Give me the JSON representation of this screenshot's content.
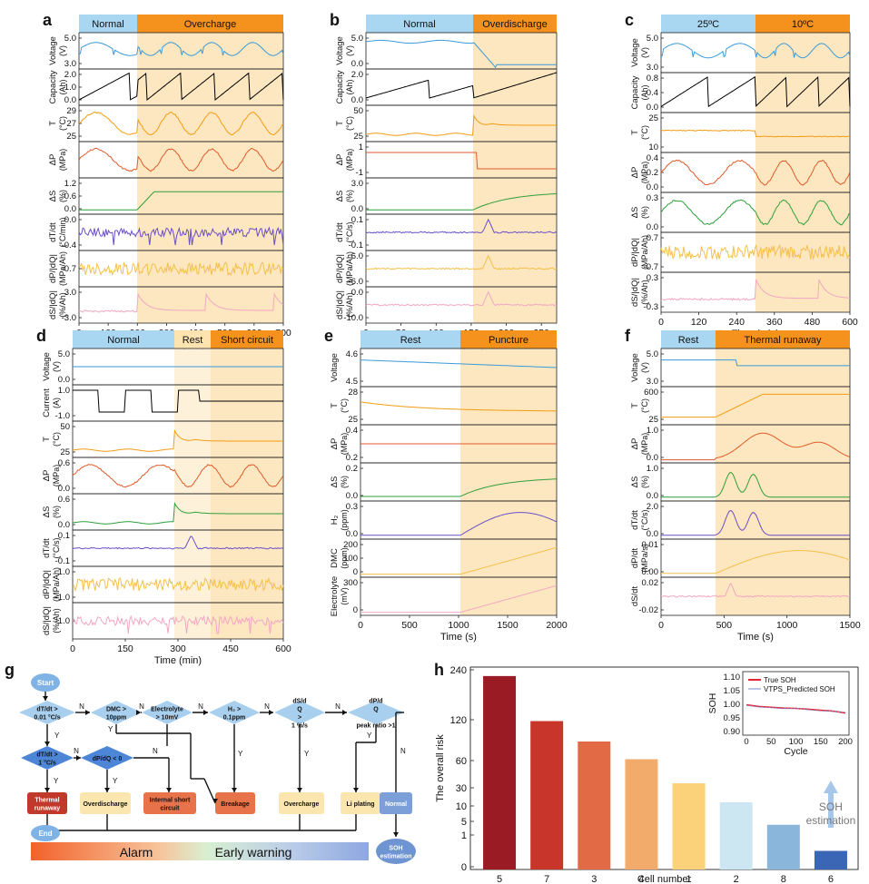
{
  "panels": {
    "a": {
      "letter": "a",
      "phases": [
        {
          "label": "Normal",
          "color": "#a9d6f0"
        },
        {
          "label": "Overcharge",
          "color": "#f5921e"
        }
      ],
      "rows": [
        {
          "label": "Voltage",
          "unit": "(V)",
          "ticks": [
            "5.0",
            "3.0"
          ],
          "color": "#3b9ad6"
        },
        {
          "label": "Capacity",
          "unit": "(Ah)",
          "ticks": [
            "2.0",
            "1.0",
            "0.0"
          ],
          "color": "#000000"
        },
        {
          "label": "T",
          "unit": "(°C)",
          "ticks": [
            "29",
            "27",
            "25"
          ],
          "color": "#f39c12"
        },
        {
          "label": "ΔP",
          "unit": "(MPa)",
          "ticks": [],
          "color": "#e05a2b"
        },
        {
          "label": "ΔS",
          "unit": "(%)",
          "ticks": [
            "1.2",
            "0.6",
            "0.0"
          ],
          "color": "#2e9e3a"
        },
        {
          "label": "dT/dt",
          "unit": "(°C/min)",
          "ticks": [
            "0.0",
            "-0.4"
          ],
          "color": "#6a4fc7"
        },
        {
          "label": "dP/|dQ|",
          "unit": "(MPa/Ah)",
          "ticks": [
            "-0.7"
          ],
          "color": "#f4c04a"
        },
        {
          "label": "dS/|dQ|",
          "unit": "(%/Ah)",
          "ticks": [
            "3.0",
            "-3.0"
          ],
          "color": "#f2a7c3"
        }
      ],
      "xticks": [
        "0",
        "100",
        "200",
        "300",
        "400",
        "500",
        "600",
        "700"
      ],
      "xlabel": "Time (min)"
    },
    "b": {
      "letter": "b",
      "phases": [
        {
          "label": "Normal",
          "color": "#a9d6f0"
        },
        {
          "label": "Overdischarge",
          "color": "#f5921e"
        }
      ],
      "rows": [
        {
          "label": "Voltage",
          "unit": "(V)",
          "ticks": [
            "5.0",
            "0.0"
          ],
          "color": "#3b9ad6"
        },
        {
          "label": "Capacity",
          "unit": "(Ah)",
          "ticks": [
            "2.0",
            "0.0"
          ],
          "color": "#000000"
        },
        {
          "label": "T",
          "unit": "(°C)",
          "ticks": [
            "50",
            "25"
          ],
          "color": "#f39c12"
        },
        {
          "label": "ΔP",
          "unit": "(MPa)",
          "ticks": [
            "1",
            "-1"
          ],
          "color": "#e05a2b"
        },
        {
          "label": "ΔS",
          "unit": "(%)",
          "ticks": [
            "3.0",
            "0.0"
          ],
          "color": "#2e9e3a"
        },
        {
          "label": "dT/dt",
          "unit": "(°C/s)",
          "ticks": [
            "0.1",
            "-0.1"
          ],
          "color": "#6a4fc7"
        },
        {
          "label": "dP/|dQ|",
          "unit": "(MPa/Ah)",
          "ticks": [
            "6.0",
            "-6.0"
          ],
          "color": "#f4c04a"
        },
        {
          "label": "dS/|dQ|",
          "unit": "(%/Ah)",
          "ticks": [
            "0.0",
            "-10.0"
          ],
          "color": "#f2a7c3"
        }
      ],
      "xticks": [
        "0",
        "50",
        "100",
        "150",
        "200",
        "250"
      ],
      "xlabel": "Time (min)"
    },
    "c": {
      "letter": "c",
      "phases": [
        {
          "label": "25ºC",
          "color": "#a9d6f0"
        },
        {
          "label": "10ºC",
          "color": "#f5921e"
        }
      ],
      "rows": [
        {
          "label": "Voltage",
          "unit": "(V)",
          "ticks": [
            "5.0",
            "3.0"
          ],
          "color": "#3b9ad6"
        },
        {
          "label": "Capacity",
          "unit": "(Ah)",
          "ticks": [
            "0.8",
            "0.4",
            "0.0"
          ],
          "color": "#000000"
        },
        {
          "label": "T",
          "unit": "(°C)",
          "ticks": [
            "25",
            "10"
          ],
          "color": "#f39c12"
        },
        {
          "label": "ΔP",
          "unit": "(MPa)",
          "ticks": [
            "0.4",
            "0.2",
            "0.0"
          ],
          "color": "#e05a2b"
        },
        {
          "label": "ΔS",
          "unit": "(%)",
          "ticks": [
            "0.3",
            "0.0"
          ],
          "color": "#2e9e3a"
        },
        {
          "label": "dP/|dQ|",
          "unit": "(MPa/Ah)",
          "ticks": [
            "0.7",
            "-0.7"
          ],
          "color": "#f4c04a"
        },
        {
          "label": "dS/|dQ|",
          "unit": "(%/Ah)",
          "ticks": [
            "0.3",
            "-0.3"
          ],
          "color": "#f2a7c3"
        }
      ],
      "xticks": [
        "0",
        "120",
        "240",
        "360",
        "480",
        "600"
      ],
      "xlabel": "Time (min)"
    },
    "d": {
      "letter": "d",
      "phases": [
        {
          "label": "Normal",
          "color": "#a9d6f0"
        },
        {
          "label": "Rest",
          "color": "#fde3b0"
        },
        {
          "label": "Short circuit",
          "color": "#f5921e"
        }
      ],
      "rows": [
        {
          "label": "Voltage",
          "unit": "(V)",
          "ticks": [
            "5.0",
            "0.0"
          ],
          "color": "#3b9ad6"
        },
        {
          "label": "Current",
          "unit": "(A)",
          "ticks": [
            "1.0",
            "-1.0"
          ],
          "color": "#000000"
        },
        {
          "label": "T",
          "unit": "(°C)",
          "ticks": [
            "50",
            "25"
          ],
          "color": "#f39c12"
        },
        {
          "label": "ΔP",
          "unit": "(MPa)",
          "ticks": [
            "0.6",
            "0.0"
          ],
          "color": "#e05a2b"
        },
        {
          "label": "ΔS",
          "unit": "(%)",
          "ticks": [
            "0.6",
            "0.0"
          ],
          "color": "#2e9e3a"
        },
        {
          "label": "dT/dt",
          "unit": "(°C/s)",
          "ticks": [
            "0.1",
            "-0.1"
          ],
          "color": "#6a4fc7"
        },
        {
          "label": "dP/|dQ|",
          "unit": "(MPa/Ah)",
          "ticks": [
            "1.0",
            "-1.0"
          ],
          "color": "#f4c04a"
        },
        {
          "label": "dS/|dQ|",
          "unit": "(%/Ah)",
          "ticks": [
            "-1.0"
          ],
          "color": "#f2a7c3"
        }
      ],
      "xticks": [
        "0",
        "150",
        "300",
        "450",
        "600"
      ],
      "xlabel": "Time (min)"
    },
    "e": {
      "letter": "e",
      "phases": [
        {
          "label": "Rest",
          "color": "#a9d6f0"
        },
        {
          "label": "Puncture",
          "color": "#f5921e"
        }
      ],
      "rows": [
        {
          "label": "Voltage",
          "unit": "",
          "ticks": [
            "4.6",
            "4.5"
          ],
          "color": "#3b9ad6"
        },
        {
          "label": "T",
          "unit": "(°C)",
          "ticks": [
            "28",
            "25"
          ],
          "color": "#f39c12"
        },
        {
          "label": "ΔP",
          "unit": "(MPa)",
          "ticks": [
            "0.4",
            "0.2"
          ],
          "color": "#e05a2b"
        },
        {
          "label": "ΔS",
          "unit": "(%)",
          "ticks": [
            "0.2",
            "0.0"
          ],
          "color": "#2e9e3a"
        },
        {
          "label": "H₂",
          "unit": "(ppm)",
          "ticks": [
            "0.3",
            "0.0"
          ],
          "color": "#6a4fc7"
        },
        {
          "label": "DMC",
          "unit": "(ppm)",
          "ticks": [
            "200",
            "100",
            "0"
          ],
          "color": "#f4c04a"
        },
        {
          "label": "Electrolyte",
          "unit": "(mV)",
          "ticks": [
            "300",
            "0"
          ],
          "color": "#f2a7c3"
        }
      ],
      "xticks": [
        "0",
        "500",
        "1000",
        "1500",
        "2000"
      ],
      "xlabel": "Time (s)"
    },
    "f": {
      "letter": "f",
      "phases": [
        {
          "label": "Rest",
          "color": "#a9d6f0"
        },
        {
          "label": "Thermal runaway",
          "color": "#f5921e"
        }
      ],
      "rows": [
        {
          "label": "Voltage",
          "unit": "(V)",
          "ticks": [
            "5.0",
            "3.0"
          ],
          "color": "#3b9ad6"
        },
        {
          "label": "T",
          "unit": "(°C)",
          "ticks": [
            "600",
            "25"
          ],
          "color": "#f39c12"
        },
        {
          "label": "ΔP",
          "unit": "(MPa)",
          "ticks": [
            "1.0",
            "0.0"
          ],
          "color": "#e05a2b"
        },
        {
          "label": "ΔS",
          "unit": "(%)",
          "ticks": [
            "1.0",
            "0.0"
          ],
          "color": "#2e9e3a"
        },
        {
          "label": "dT/dt",
          "unit": "(°C/s)",
          "ticks": [
            "2.0",
            "0.0"
          ],
          "color": "#6a4fc7"
        },
        {
          "label": "dP/dt",
          "unit": "(MPa/s)",
          "ticks": [
            "0.01",
            "0.00"
          ],
          "color": "#f4c04a"
        },
        {
          "label": "dS/dt",
          "unit": "",
          "ticks": [
            "0.02",
            "-0.02"
          ],
          "color": "#f2a7c3"
        }
      ],
      "xticks": [
        "0",
        "500",
        "1000",
        "1500"
      ],
      "xlabel": "Time (s)"
    }
  },
  "flowchart": {
    "letter": "g",
    "start": "Start",
    "end": "End",
    "decisions": [
      {
        "id": "dT",
        "text": "dT/dt >|0.01 °C/s"
      },
      {
        "id": "DMC",
        "text": "DMC >|10ppm"
      },
      {
        "id": "Ele",
        "text": "Electrolyte|> 10mV"
      },
      {
        "id": "H2",
        "text": "H₂ >|0.1ppm"
      },
      {
        "id": "dS",
        "text": "dS/d|Q| >|1 %/s"
      },
      {
        "id": "dP",
        "text": "dP/d|Q||peak ratio >1"
      },
      {
        "id": "dT2",
        "text": "dT/dt >|1 °C/s"
      },
      {
        "id": "dPQ",
        "text": "dP/dQ < 0"
      }
    ],
    "outcomes": [
      {
        "id": "TR",
        "text": "Thermal|runaway",
        "color": "#c0392b"
      },
      {
        "id": "OD",
        "text": "Overdischarge",
        "color": "#fbe6b0"
      },
      {
        "id": "ISC",
        "text": "Internal short|circuit",
        "color": "#e8734a"
      },
      {
        "id": "BR",
        "text": "Breakage",
        "color": "#e8734a"
      },
      {
        "id": "OC",
        "text": "Overcharge",
        "color": "#fbe6b0"
      },
      {
        "id": "LP",
        "text": "Li plating",
        "color": "#fbe6b0"
      },
      {
        "id": "NO",
        "text": "Normal",
        "color": "#7b9fd6"
      },
      {
        "id": "SOH",
        "text": "SOH|estimation",
        "color": "#6f94d2"
      }
    ],
    "labels": {
      "yes": "Y",
      "no": "N"
    },
    "bar": {
      "alarm": "Alarm",
      "early": "Early warning"
    }
  },
  "chart_data": {
    "type": "bar",
    "letter": "h",
    "categories": [
      "5",
      "7",
      "3",
      "4",
      "1",
      "2",
      "8",
      "6"
    ],
    "values": [
      225,
      118,
      88,
      62,
      35,
      14,
      4,
      0.5
    ],
    "colors": [
      "#9b1b24",
      "#c8352b",
      "#e26a45",
      "#f2ab6a",
      "#fbd17a",
      "#cde7f2",
      "#8bb6dc",
      "#3a66b5"
    ],
    "xlabel": "Cell number",
    "ylabel": "The overall risk",
    "yticks": [
      "240",
      "120",
      "60",
      "30",
      "10",
      "5",
      "1",
      "0"
    ],
    "annotation": "SOH|estimation",
    "inset": {
      "type": "line",
      "xlabel": "Cycle",
      "ylabel": "SOH",
      "xticks": [
        "0",
        "50",
        "100",
        "150",
        "200"
      ],
      "yticks": [
        "1.10",
        "1.05",
        "1.00",
        "0.95",
        "0.90"
      ],
      "ylim": [
        0.9,
        1.1
      ],
      "series": [
        {
          "name": "True SOH",
          "color": "#e32636"
        },
        {
          "name": "VTPS_Predicted SOH",
          "color": "#7a8fd0"
        }
      ],
      "x": [
        0,
        25,
        50,
        75,
        100,
        125,
        150,
        175,
        200
      ],
      "true": [
        0.998,
        0.992,
        0.989,
        0.986,
        0.985,
        0.982,
        0.978,
        0.975,
        0.968
      ],
      "pred": [
        0.996,
        0.99,
        0.988,
        0.984,
        0.986,
        0.98,
        0.976,
        0.974,
        0.97
      ]
    }
  }
}
